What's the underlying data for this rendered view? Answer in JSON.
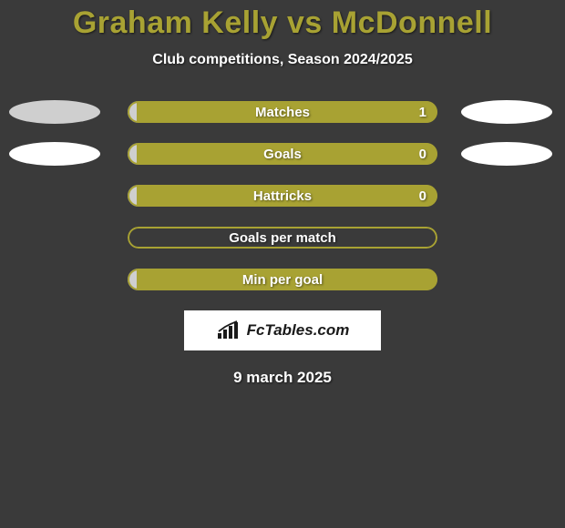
{
  "title": "Graham Kelly vs McDonnell",
  "subtitle": "Club competitions, Season 2024/2025",
  "date": "9 march 2025",
  "colors": {
    "background": "#3a3a3a",
    "accent": "#a8a233",
    "player1_fill": "#cfcfcf",
    "player2_fill": "#a8a233",
    "ellipse": "#ffffff",
    "text": "#ffffff"
  },
  "logo": {
    "text": "FcTables.com"
  },
  "rows": [
    {
      "label": "Matches",
      "show_ellipses": true,
      "ellipse_left_color": "#cfcfcf",
      "ellipse_right_color": "#ffffff",
      "left_value": "",
      "right_value": "1",
      "left_pct": 3,
      "right_pct": 97,
      "left_color": "#cfcfcf",
      "right_color": "#a8a233",
      "border_color": "#a8a233"
    },
    {
      "label": "Goals",
      "show_ellipses": true,
      "ellipse_left_color": "#ffffff",
      "ellipse_right_color": "#ffffff",
      "left_value": "",
      "right_value": "0",
      "left_pct": 3,
      "right_pct": 97,
      "left_color": "#cfcfcf",
      "right_color": "#a8a233",
      "border_color": "#a8a233"
    },
    {
      "label": "Hattricks",
      "show_ellipses": false,
      "left_value": "",
      "right_value": "0",
      "left_pct": 3,
      "right_pct": 97,
      "left_color": "#cfcfcf",
      "right_color": "#a8a233",
      "border_color": "#a8a233"
    },
    {
      "label": "Goals per match",
      "show_ellipses": false,
      "left_value": "",
      "right_value": "",
      "left_pct": 50,
      "right_pct": 50,
      "left_color": "transparent",
      "right_color": "transparent",
      "border_color": "#a8a233"
    },
    {
      "label": "Min per goal",
      "show_ellipses": false,
      "left_value": "",
      "right_value": "",
      "left_pct": 3,
      "right_pct": 97,
      "left_color": "#cfcfcf",
      "right_color": "#a8a233",
      "border_color": "#a8a233"
    }
  ]
}
